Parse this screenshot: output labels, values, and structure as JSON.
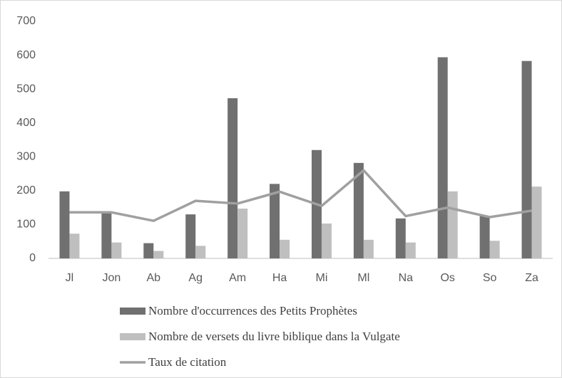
{
  "chart_data": {
    "type": "bar",
    "categories": [
      "Jl",
      "Jon",
      "Ab",
      "Ag",
      "Am",
      "Ha",
      "Mi",
      "Ml",
      "Na",
      "Os",
      "So",
      "Za"
    ],
    "series": [
      {
        "name": "Nombre d'occurrences des Petits Prophètes",
        "color": "#707070",
        "values": [
          198,
          135,
          45,
          130,
          473,
          220,
          320,
          282,
          118,
          594,
          125,
          583
        ]
      },
      {
        "name": "Nombre de versets du livre biblique dans la Vulgate",
        "color": "#bfbfbf",
        "values": [
          73,
          47,
          22,
          37,
          147,
          55,
          103,
          55,
          47,
          198,
          52,
          212
        ]
      },
      {
        "name": "Taux de citation",
        "color": "#a0a0a0",
        "type": "line",
        "values": [
          136,
          136,
          111,
          170,
          162,
          197,
          155,
          260,
          125,
          150,
          122,
          141
        ]
      }
    ],
    "ylim": [
      0,
      700
    ],
    "yticks": [
      0,
      100,
      200,
      300,
      400,
      500,
      600,
      700
    ],
    "grid": false
  }
}
